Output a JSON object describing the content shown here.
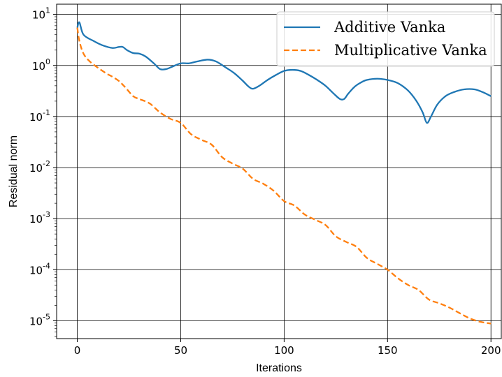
{
  "chart_data": {
    "type": "line",
    "xlabel": "Iterations",
    "ylabel": "Residual norm",
    "xlim": [
      -10,
      205
    ],
    "ylim_log10": [
      -5.35,
      1.2
    ],
    "y_scale": "log",
    "grid": true,
    "legend_position": "top-right",
    "x_ticks": [
      0,
      50,
      100,
      150,
      200
    ],
    "x_tick_labels": [
      "0",
      "50",
      "100",
      "150",
      "200"
    ],
    "y_ticks": [
      1,
      0,
      -1,
      -2,
      -3,
      -4,
      -5
    ],
    "y_tick_labels": [
      "1",
      "0",
      "-1",
      "-2",
      "-3",
      "-4",
      "-5"
    ],
    "y_tick_base": "10",
    "series": [
      {
        "name": "Additive Vanka",
        "color": "#1f77b4",
        "style": "solid",
        "x": [
          0,
          1,
          3,
          8,
          12,
          17,
          20,
          22,
          24,
          27,
          30,
          33,
          37,
          40,
          43,
          46,
          50,
          54,
          58,
          63,
          67,
          72,
          76,
          80,
          83,
          85,
          88,
          92,
          96,
          100,
          104,
          108,
          112,
          116,
          120,
          124,
          127,
          129,
          131,
          134,
          137,
          140,
          145,
          150,
          155,
          160,
          164,
          167,
          169,
          171,
          174,
          178,
          182,
          187,
          192,
          196,
          200
        ],
        "y": [
          5.5,
          7.0,
          4.0,
          3.0,
          2.5,
          2.2,
          2.3,
          2.3,
          2.0,
          1.75,
          1.7,
          1.5,
          1.1,
          0.85,
          0.85,
          0.95,
          1.1,
          1.1,
          1.2,
          1.3,
          1.2,
          0.9,
          0.7,
          0.5,
          0.38,
          0.35,
          0.4,
          0.52,
          0.65,
          0.78,
          0.82,
          0.78,
          0.65,
          0.52,
          0.4,
          0.28,
          0.22,
          0.22,
          0.28,
          0.38,
          0.46,
          0.52,
          0.55,
          0.52,
          0.45,
          0.32,
          0.2,
          0.12,
          0.075,
          0.1,
          0.17,
          0.25,
          0.3,
          0.34,
          0.34,
          0.3,
          0.25
        ]
      },
      {
        "name": "Multiplicative Vanka",
        "color": "#ff7f0e",
        "style": "dashed",
        "x": [
          0,
          1,
          3,
          6,
          10,
          14,
          17,
          20,
          23,
          27,
          30,
          35,
          40,
          45,
          50,
          55,
          60,
          65,
          70,
          75,
          80,
          85,
          90,
          95,
          100,
          105,
          110,
          115,
          120,
          125,
          130,
          135,
          140,
          145,
          150,
          155,
          160,
          165,
          170,
          175,
          180,
          185,
          190,
          195,
          200
        ],
        "y": [
          5.5,
          3.0,
          1.7,
          1.2,
          0.9,
          0.7,
          0.6,
          0.5,
          0.38,
          0.25,
          0.22,
          0.18,
          0.12,
          0.09,
          0.075,
          0.045,
          0.035,
          0.028,
          0.016,
          0.012,
          0.0095,
          0.006,
          0.0048,
          0.0035,
          0.0022,
          0.0018,
          0.0012,
          0.00095,
          0.00075,
          0.00045,
          0.00035,
          0.00028,
          0.00017,
          0.00013,
          0.0001,
          6.8e-05,
          5e-05,
          4e-05,
          2.6e-05,
          2.2e-05,
          1.8e-05,
          1.4e-05,
          1.1e-05,
          9.5e-06,
          8.8e-06
        ]
      }
    ]
  }
}
